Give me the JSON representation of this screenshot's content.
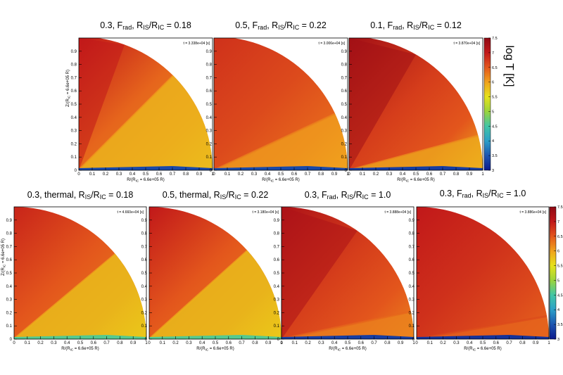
{
  "chart_data": {
    "type": "heatmap",
    "panels": [
      {
        "title_pre": "0.3, F",
        "title_sub1": "rad",
        "title_mid": ", R",
        "title_sub2": "IS",
        "title_mid2": "/R",
        "title_sub3": "IC",
        "title_post": " = 0.18",
        "time_label": "t = 3.338e+04 [s]",
        "xlabel": "R/(R",
        "xlabel_sub": "IC",
        "xlabel_post": " = 6.6e+05 R",
        "xlabel_end": ")",
        "ylabel": "Z/(R",
        "ylabel_sub": "IC",
        "ylabel_post": " = 6.6e+05 R",
        "ylabel_end": ")",
        "xlim": [
          0,
          1
        ],
        "ylim": [
          0,
          1
        ],
        "jet_angle_deg": 20,
        "wind_angle_deg": 45,
        "hot_level": 7.0,
        "warm_level": 6.2,
        "cool_level": 5.8,
        "disk_level": 3.4
      },
      {
        "title_pre": "0.5, F",
        "title_sub1": "rad",
        "title_mid": ", R",
        "title_sub2": "IS",
        "title_mid2": "/R",
        "title_sub3": "IC",
        "title_post": " = 0.22",
        "time_label": "t = 3.006e+04 [s]",
        "xlabel": "R/(R",
        "xlabel_sub": "IC",
        "xlabel_post": " = 6.6e+05 R",
        "xlabel_end": ")",
        "ylabel": "",
        "ylabel_sub": "",
        "ylabel_post": "",
        "ylabel_end": "",
        "xlim": [
          0,
          1
        ],
        "ylim": [
          0,
          1
        ],
        "jet_angle_deg": 0,
        "wind_angle_deg": 25,
        "hot_level": 6.8,
        "warm_level": 6.4,
        "cool_level": 6.0,
        "disk_level": 3.4
      },
      {
        "title_pre": "0.1, F",
        "title_sub1": "rad",
        "title_mid": ", R",
        "title_sub2": "IS",
        "title_mid2": "/R",
        "title_sub3": "IC",
        "title_post": " = 0.12",
        "time_label": "t = 3.870e+04 [s]",
        "xlabel": "R/(R",
        "xlabel_sub": "IC",
        "xlabel_post": " = 6.6e+05 R",
        "xlabel_end": ")",
        "ylabel": "",
        "ylabel_sub": "",
        "ylabel_post": "",
        "ylabel_end": "",
        "xlim": [
          0,
          1
        ],
        "ylim": [
          0,
          1
        ],
        "jet_angle_deg": 30,
        "wind_angle_deg": 15,
        "hot_level": 7.3,
        "warm_level": 6.5,
        "cool_level": 5.9,
        "disk_level": 3.3
      },
      {
        "title_pre": "0.3, thermal, R",
        "title_sub1": "",
        "title_mid": "",
        "title_sub2": "IS",
        "title_mid2": "/R",
        "title_sub3": "IC",
        "title_post": " = 0.18",
        "time_label": "t = 4.660e+04 [s]",
        "xlabel": "R/(R",
        "xlabel_sub": "IC",
        "xlabel_post": " = 6.6e+05 R",
        "xlabel_end": ")",
        "ylabel": "Z/(R",
        "ylabel_sub": "IC",
        "ylabel_post": " = 6.6e+05 R",
        "ylabel_end": ")",
        "xlim": [
          0,
          1
        ],
        "ylim": [
          0,
          1
        ],
        "jet_angle_deg": 0,
        "wind_angle_deg": 40,
        "hot_level": 6.9,
        "warm_level": 6.3,
        "cool_level": 5.7,
        "disk_level": 4.6
      },
      {
        "title_pre": "0.5, thermal, R",
        "title_sub1": "",
        "title_mid": "",
        "title_sub2": "IS",
        "title_mid2": "/R",
        "title_sub3": "IC",
        "title_post": " = 0.22",
        "time_label": "t = 3.180e+04 [s]",
        "xlabel": "R/(R",
        "xlabel_sub": "IC",
        "xlabel_post": " = 6.6e+05 R",
        "xlabel_end": ")",
        "ylabel": "",
        "ylabel_sub": "",
        "ylabel_post": "",
        "ylabel_end": "",
        "xlim": [
          0,
          1
        ],
        "ylim": [
          0,
          1
        ],
        "jet_angle_deg": 0,
        "wind_angle_deg": 42,
        "hot_level": 7.0,
        "warm_level": 6.3,
        "cool_level": 5.7,
        "disk_level": 4.6
      },
      {
        "title_pre": "0.3, F",
        "title_sub1": "rad",
        "title_mid": ", R",
        "title_sub2": "IS",
        "title_mid2": "/R",
        "title_sub3": "IC",
        "title_post": " = 1.0",
        "time_label": "t = 3.888e+04 [s]",
        "xlabel": "R/(R",
        "xlabel_sub": "IC",
        "xlabel_post": " = 6.6e+05 R",
        "xlabel_end": ")",
        "ylabel": "",
        "ylabel_sub": "",
        "ylabel_post": "",
        "ylabel_end": "",
        "xlim": [
          0,
          1
        ],
        "ylim": [
          0,
          1
        ],
        "jet_angle_deg": 35,
        "wind_angle_deg": 12,
        "hot_level": 7.2,
        "warm_level": 6.5,
        "cool_level": 6.2,
        "disk_level": 3.3
      },
      {
        "title_pre": "0.3, F",
        "title_sub1": "rad",
        "title_mid": ", R",
        "title_sub2": "IS",
        "title_mid2": "/R",
        "title_sub3": "IC",
        "title_post": " = 1.0",
        "time_label": "t = 3.886e+04 [s]",
        "xlabel": "R/(R",
        "xlabel_sub": "IC",
        "xlabel_post": " = 6.6e+05 R",
        "xlabel_end": ")",
        "ylabel": "",
        "ylabel_sub": "",
        "ylabel_post": "",
        "ylabel_end": "",
        "xlim": [
          0,
          1
        ],
        "ylim": [
          0,
          1
        ],
        "jet_angle_deg": 0,
        "wind_angle_deg": 10,
        "hot_level": 7.0,
        "warm_level": 6.6,
        "cool_level": 6.4,
        "disk_level": 3.2
      }
    ],
    "x_ticks": [
      "0",
      "0.1",
      "0.2",
      "0.3",
      "0.4",
      "0.5",
      "0.6",
      "0.7",
      "0.8",
      "0.9",
      "1"
    ],
    "y_ticks": [
      "0",
      "0.1",
      "0.2",
      "0.3",
      "0.4",
      "0.5",
      "0.6",
      "0.7",
      "0.8",
      "0.9",
      "1"
    ],
    "colorbar": {
      "title": "log T [K]",
      "range": [
        3,
        7.5
      ],
      "ticks": [
        "3",
        "3.5",
        "4",
        "4.5",
        "5",
        "5.5",
        "6",
        "6.5",
        "7",
        "7.5"
      ],
      "colormap": [
        "#0d1a8c",
        "#1c55b0",
        "#2c9fc8",
        "#42c6a5",
        "#9bd43c",
        "#e6e21a",
        "#f0a21d",
        "#e3561c",
        "#c1181a",
        "#8f0a14"
      ]
    }
  }
}
